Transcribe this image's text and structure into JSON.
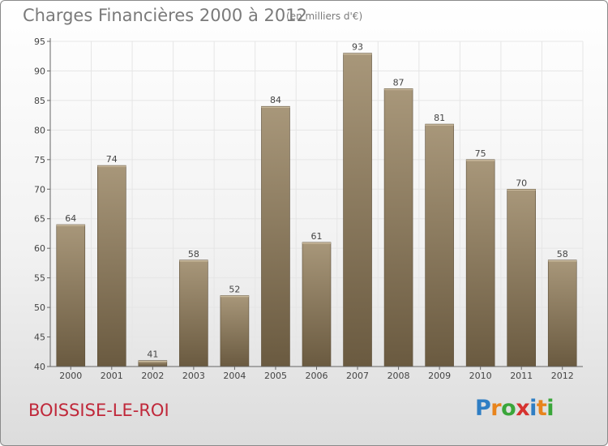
{
  "title": "Charges Financières 2000 à 2012",
  "subtitle": "(en milliers d'€)",
  "commune": "BOISSISE-LE-ROI",
  "logo": {
    "text": "Proxiti",
    "letter_colors": [
      "#2f7ec4",
      "#e8841c",
      "#3aa63a",
      "#d6322f",
      "#2f7ec4",
      "#e8841c",
      "#3aa63a"
    ]
  },
  "colors": {
    "bar_top": "#a8977a",
    "bar_bottom": "#6a5a40",
    "axis": "#666666",
    "grid": "#e6e6e6",
    "text": "#444444"
  },
  "chart_data": {
    "type": "bar",
    "categories": [
      "2000",
      "2001",
      "2002",
      "2003",
      "2004",
      "2005",
      "2006",
      "2007",
      "2008",
      "2009",
      "2010",
      "2011",
      "2012"
    ],
    "values": [
      64,
      74,
      41,
      58,
      52,
      84,
      61,
      93,
      87,
      81,
      75,
      70,
      58
    ],
    "ylim": [
      40,
      95
    ],
    "yticks": [
      40,
      45,
      50,
      55,
      60,
      65,
      70,
      75,
      80,
      85,
      90,
      95
    ],
    "grid": true
  }
}
